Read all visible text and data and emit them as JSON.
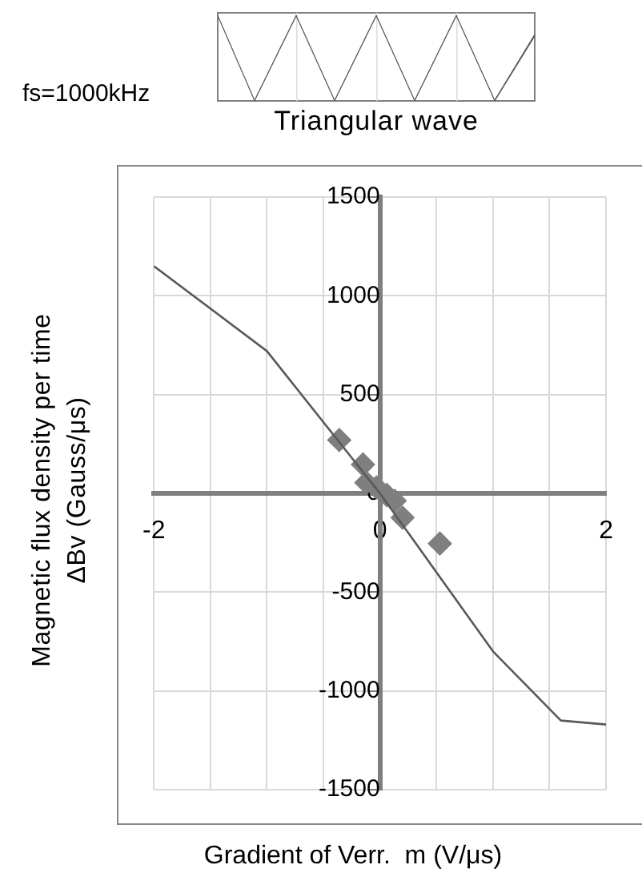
{
  "chart_data": {
    "type": "scatter",
    "xlabel": "Gradient of Verr.  m (V/μs)",
    "ylabel": "Magnetic flux density per time ΔBv (Gauss/μs)",
    "annotations": [
      "fs=1000kHz",
      "Triangular wave"
    ],
    "xlim": [
      -2,
      2
    ],
    "xticks": [
      -2,
      {
        "value": -1.5,
        "label": null
      },
      {
        "value": -1,
        "label": null
      },
      {
        "value": -0.5,
        "label": null
      },
      0,
      {
        "value": 0.5,
        "label": null
      },
      {
        "value": 1,
        "label": null
      },
      {
        "value": 1.5,
        "label": null
      },
      2
    ],
    "ylim": [
      -1500,
      1500
    ],
    "yticks": [
      -1500,
      -1000,
      -500,
      0,
      500,
      1000,
      1500
    ],
    "grid": true,
    "series": [
      {
        "type": "line",
        "color": "#595959",
        "marker": "none",
        "line_style": "solid",
        "x": [
          -2,
          -1,
          0,
          1,
          1.6,
          2
        ],
        "values": [
          1150,
          720,
          0,
          -800,
          -1150,
          -1170
        ]
      },
      {
        "type": "scatter",
        "color": "#7f7f7f",
        "marker": "diamond",
        "x": [
          -0.36,
          -0.15,
          -0.12,
          -0.03,
          0.06,
          0.13,
          0.2,
          0.53
        ],
        "values": [
          270,
          146,
          54,
          30,
          -8,
          -38,
          -123,
          -254
        ]
      }
    ]
  }
}
